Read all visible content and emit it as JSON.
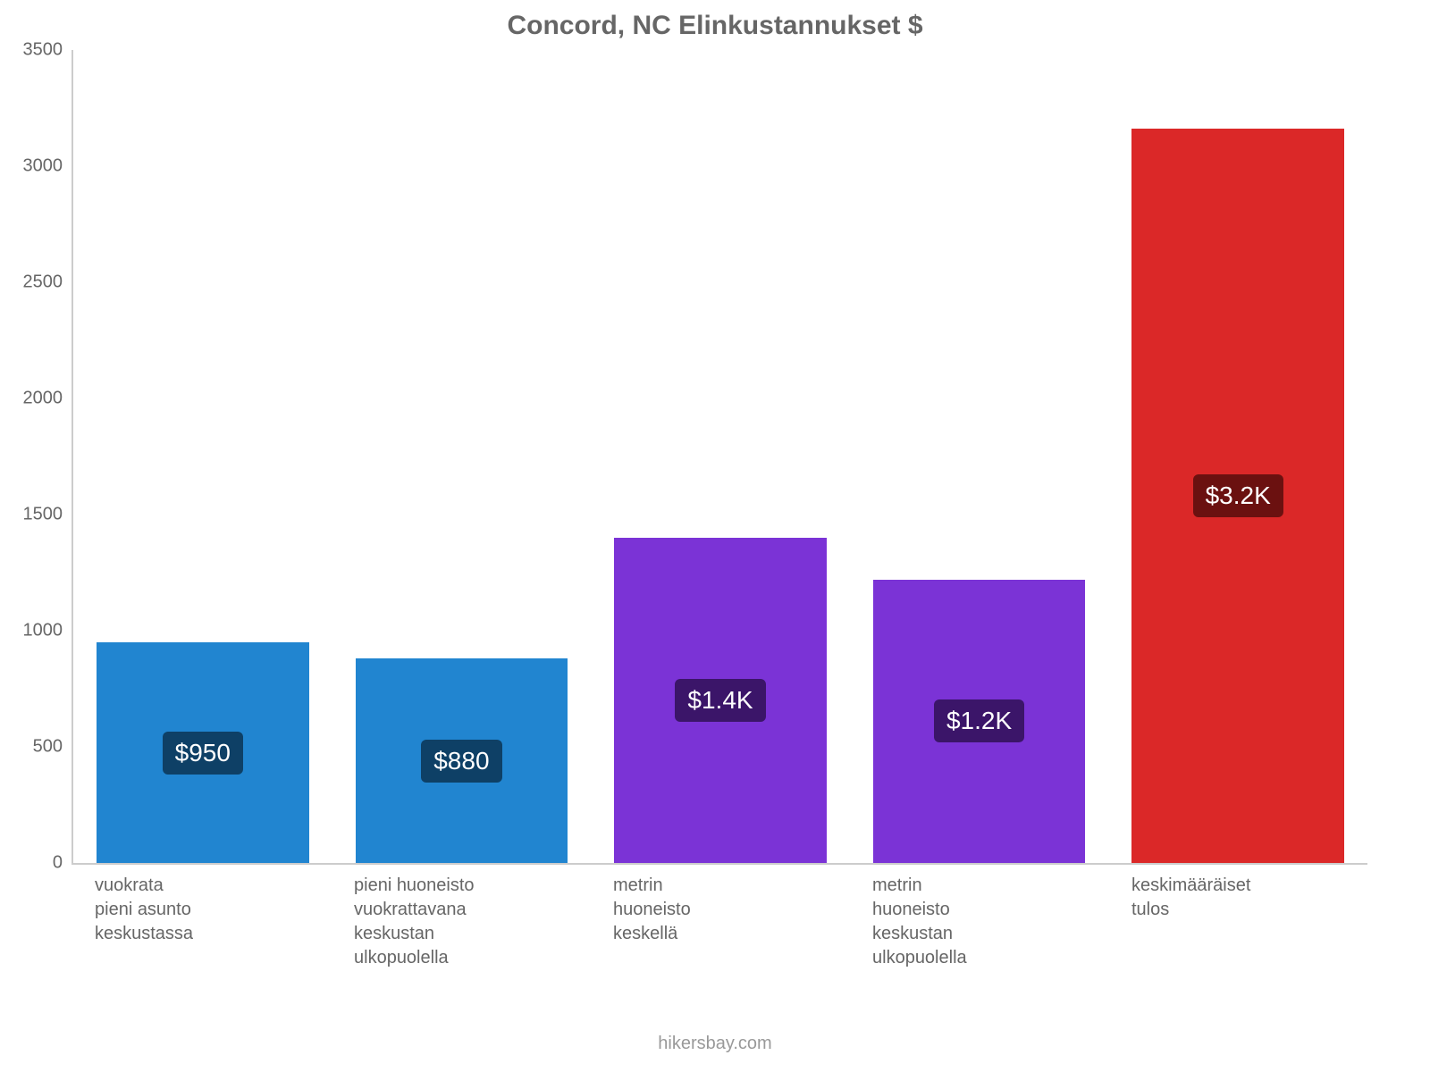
{
  "chart": {
    "type": "bar",
    "title": "Concord, NC Elinkustannukset $",
    "title_fontsize": 30,
    "title_color": "#666666",
    "background_color": "#ffffff",
    "axis_color": "#cccccc",
    "tick_color": "#666666",
    "tick_fontsize": 20,
    "ylim": [
      0,
      3500
    ],
    "ytick_step": 500,
    "yticks": [
      "0",
      "500",
      "1000",
      "1500",
      "2000",
      "2500",
      "3000",
      "3500"
    ],
    "bar_width_pct": 82,
    "bars": [
      {
        "label": "vuokrata\npieni asunto\nkeskustassa",
        "value": 950,
        "value_label": "$950",
        "color": "#2185d0",
        "badge_bg": "#0e4066"
      },
      {
        "label": "pieni huoneisto\nvuokrattavana\nkeskustan\nulkopuolella",
        "value": 880,
        "value_label": "$880",
        "color": "#2185d0",
        "badge_bg": "#0e4066"
      },
      {
        "label": "metrin\nhuoneisto\nkeskellä",
        "value": 1400,
        "value_label": "$1.4K",
        "color": "#7b33d6",
        "badge_bg": "#3b1569"
      },
      {
        "label": "metrin\nhuoneisto\nkeskustan\nulkopuolella",
        "value": 1220,
        "value_label": "$1.2K",
        "color": "#7b33d6",
        "badge_bg": "#3b1569"
      },
      {
        "label": "keskimääräiset\ntulos",
        "value": 3160,
        "value_label": "$3.2K",
        "color": "#db2828",
        "badge_bg": "#6b1110"
      }
    ],
    "attribution": "hikersbay.com",
    "badge_fontsize": 28,
    "badge_color": "#ffffff",
    "badge_radius": 6
  }
}
